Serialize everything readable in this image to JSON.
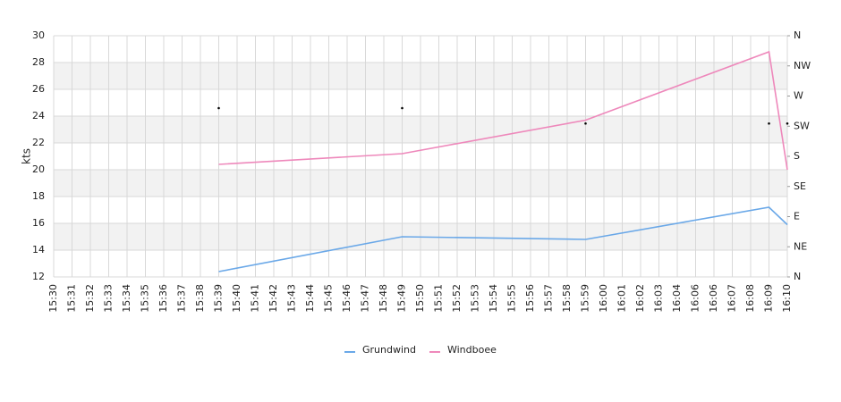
{
  "chart_data": {
    "type": "line",
    "y_label": "kts",
    "categories": [
      "15:30",
      "15:31",
      "15:32",
      "15:33",
      "15:34",
      "15:35",
      "15:36",
      "15:37",
      "15:38",
      "15:39",
      "15:40",
      "15:41",
      "15:42",
      "15:43",
      "15:44",
      "15:45",
      "15:46",
      "15:47",
      "15:48",
      "15:49",
      "15:50",
      "15:51",
      "15:52",
      "15:53",
      "15:54",
      "15:55",
      "15:56",
      "15:57",
      "15:58",
      "15:59",
      "16:00",
      "16:01",
      "16:02",
      "16:03",
      "16:04",
      "16:06",
      "16:06",
      "16:07",
      "16:08",
      "16:09",
      "16:10"
    ],
    "ylim": [
      12,
      30
    ],
    "yticks": [
      12,
      14,
      16,
      18,
      20,
      22,
      24,
      26,
      28,
      30
    ],
    "y2lim": [
      0,
      360
    ],
    "y2ticks": [
      {
        "value": 0,
        "label": "N"
      },
      {
        "value": 45,
        "label": "NE"
      },
      {
        "value": 90,
        "label": "E"
      },
      {
        "value": 135,
        "label": "SE"
      },
      {
        "value": 180,
        "label": "S"
      },
      {
        "value": 225,
        "label": "SW"
      },
      {
        "value": 270,
        "label": "W"
      },
      {
        "value": 315,
        "label": "NW"
      },
      {
        "value": 360,
        "label": "N"
      }
    ],
    "grid": true,
    "legend": "bottom",
    "series": [
      {
        "name": "Grundwind",
        "color": "#6aa8e8",
        "x": [
          "15:39",
          "15:49",
          "15:59",
          "16:09",
          "16:10"
        ],
        "values": [
          12.4,
          15.0,
          14.8,
          17.2,
          15.9
        ]
      },
      {
        "name": "Windboee",
        "color": "#ee88bb",
        "x": [
          "15:39",
          "15:49",
          "15:59",
          "16:09",
          "16:10"
        ],
        "values": [
          20.4,
          21.2,
          23.7,
          28.8,
          20.0
        ]
      },
      {
        "type": "scatter",
        "axis": "y2",
        "color": "#000000",
        "x": [
          "15:39",
          "15:49",
          "15:59",
          "16:09",
          "16:10"
        ],
        "values": [
          252,
          252,
          229,
          229,
          229
        ]
      }
    ]
  }
}
